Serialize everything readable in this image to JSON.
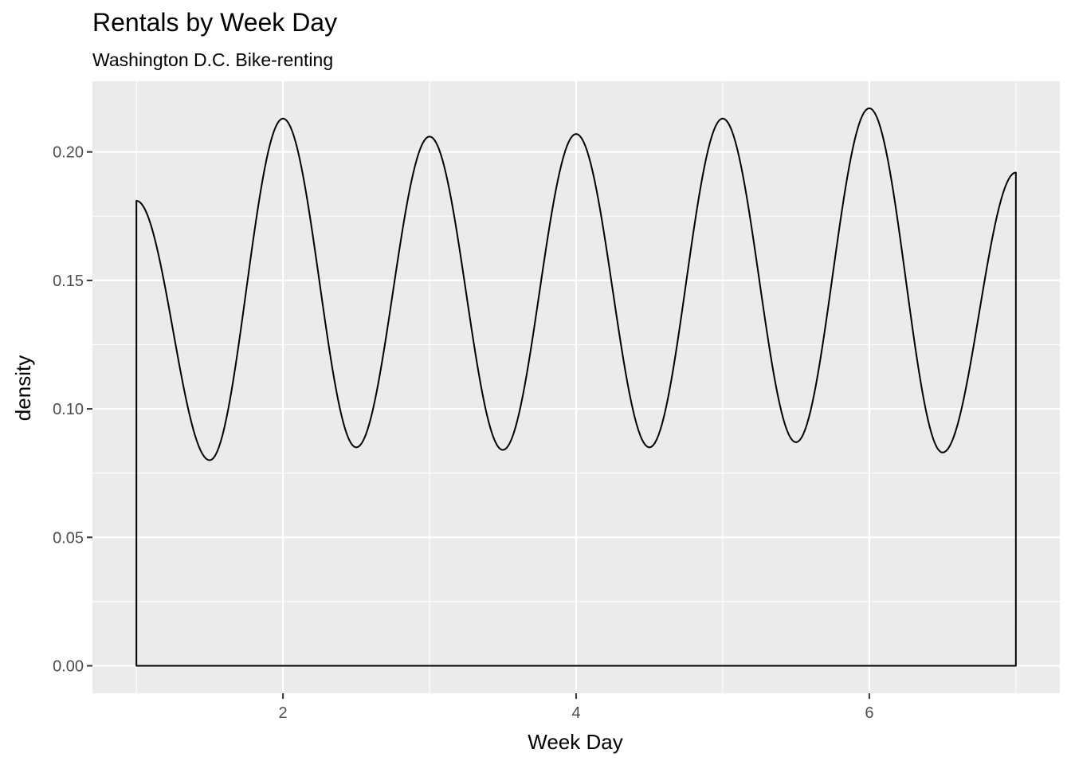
{
  "chart_data": {
    "type": "area",
    "title": "Rentals by Week Day",
    "subtitle": "Washington D.C. Bike-renting",
    "xlabel": "Week Day",
    "ylabel": "density",
    "xlim": [
      0.7,
      7.3
    ],
    "ylim": [
      -0.0107,
      0.2275
    ],
    "x_ticks": [
      2,
      4,
      6
    ],
    "y_ticks": [
      0.0,
      0.05,
      0.1,
      0.15,
      0.2
    ],
    "x_tick_labels": [
      "2",
      "4",
      "6"
    ],
    "y_tick_labels": [
      "0.00",
      "0.05",
      "0.10",
      "0.15",
      "0.20"
    ],
    "grid": true,
    "x_range": [
      1,
      7
    ],
    "series": [
      {
        "x": [
          1.0,
          1.5,
          2.0,
          2.5,
          3.0,
          3.5,
          4.0,
          4.5,
          5.0,
          5.5,
          6.0,
          6.5,
          7.0
        ],
        "values": [
          0.181,
          0.08,
          0.213,
          0.085,
          0.206,
          0.084,
          0.207,
          0.085,
          0.213,
          0.087,
          0.217,
          0.083,
          0.192
        ]
      }
    ],
    "colors": {
      "panel": "#ebebeb",
      "grid": "#ffffff",
      "line": "#000000"
    }
  }
}
